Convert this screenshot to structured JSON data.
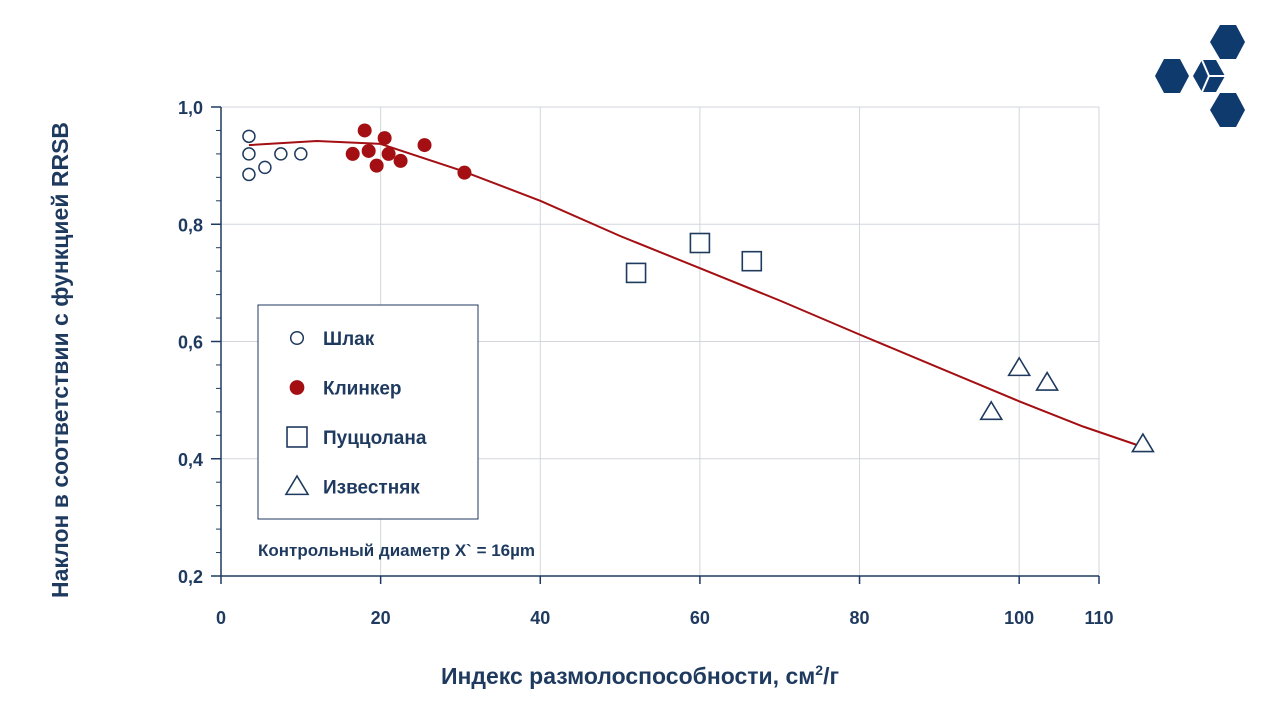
{
  "chart_data": {
    "type": "scatter",
    "xlabel": "Индекс размолоспособности, см",
    "xlabel_sup": "2",
    "xlabel_tail": "/г",
    "ylabel": "Наклон в соответствии с функцией RRSB",
    "xlim": [
      0,
      110
    ],
    "ylim": [
      0.2,
      1.0
    ],
    "x_ticks": [
      0,
      20,
      40,
      60,
      80,
      100,
      110
    ],
    "x_tick_labels": [
      "0",
      "20",
      "40",
      "60",
      "80",
      "100",
      "110"
    ],
    "y_ticks": [
      0.2,
      0.4,
      0.6,
      0.8,
      1.0
    ],
    "y_tick_labels": [
      "0,2",
      "0,4",
      "0,6",
      "0,8",
      "1,0"
    ],
    "grid": true,
    "legend_position": "lower-left",
    "annotation": "Контрольный диаметр X` = 16µm",
    "series": [
      {
        "name": "Шлак",
        "marker": "open-circle",
        "color": "#1f3a5f",
        "points": [
          [
            3.5,
            0.95
          ],
          [
            3.5,
            0.92
          ],
          [
            3.5,
            0.885
          ],
          [
            5.5,
            0.897
          ],
          [
            7.5,
            0.92
          ],
          [
            10,
            0.92
          ]
        ]
      },
      {
        "name": "Клинкер",
        "marker": "filled-circle",
        "color": "#a30f12",
        "points": [
          [
            18,
            0.96
          ],
          [
            16.5,
            0.92
          ],
          [
            18.5,
            0.925
          ],
          [
            19.5,
            0.9
          ],
          [
            20.5,
            0.947
          ],
          [
            21,
            0.92
          ],
          [
            22.5,
            0.908
          ],
          [
            25.5,
            0.935
          ],
          [
            30.5,
            0.888
          ]
        ]
      },
      {
        "name": "Пуццолана",
        "marker": "open-square",
        "color": "#1f3a5f",
        "points": [
          [
            52,
            0.717
          ],
          [
            60,
            0.768
          ],
          [
            66.5,
            0.737
          ]
        ]
      },
      {
        "name": "Известняк",
        "marker": "open-triangle",
        "color": "#1f3a5f",
        "points": [
          [
            96.5,
            0.48
          ],
          [
            100,
            0.555
          ],
          [
            103.5,
            0.53
          ],
          [
            115.5,
            0.425
          ]
        ]
      }
    ],
    "trend_line": {
      "color": "#a30f12",
      "points": [
        [
          3.5,
          0.935
        ],
        [
          12,
          0.942
        ],
        [
          20,
          0.937
        ],
        [
          30,
          0.892
        ],
        [
          40,
          0.84
        ],
        [
          50,
          0.78
        ],
        [
          60,
          0.725
        ],
        [
          70,
          0.67
        ],
        [
          80,
          0.612
        ],
        [
          90,
          0.555
        ],
        [
          100,
          0.498
        ],
        [
          108,
          0.455
        ],
        [
          115.5,
          0.42
        ]
      ]
    }
  },
  "colors": {
    "navy": "#1f3a5f",
    "red": "#a30f12",
    "logo": "#0f3a6e"
  },
  "logo": {
    "icon": "hexagon-cluster-logo"
  }
}
